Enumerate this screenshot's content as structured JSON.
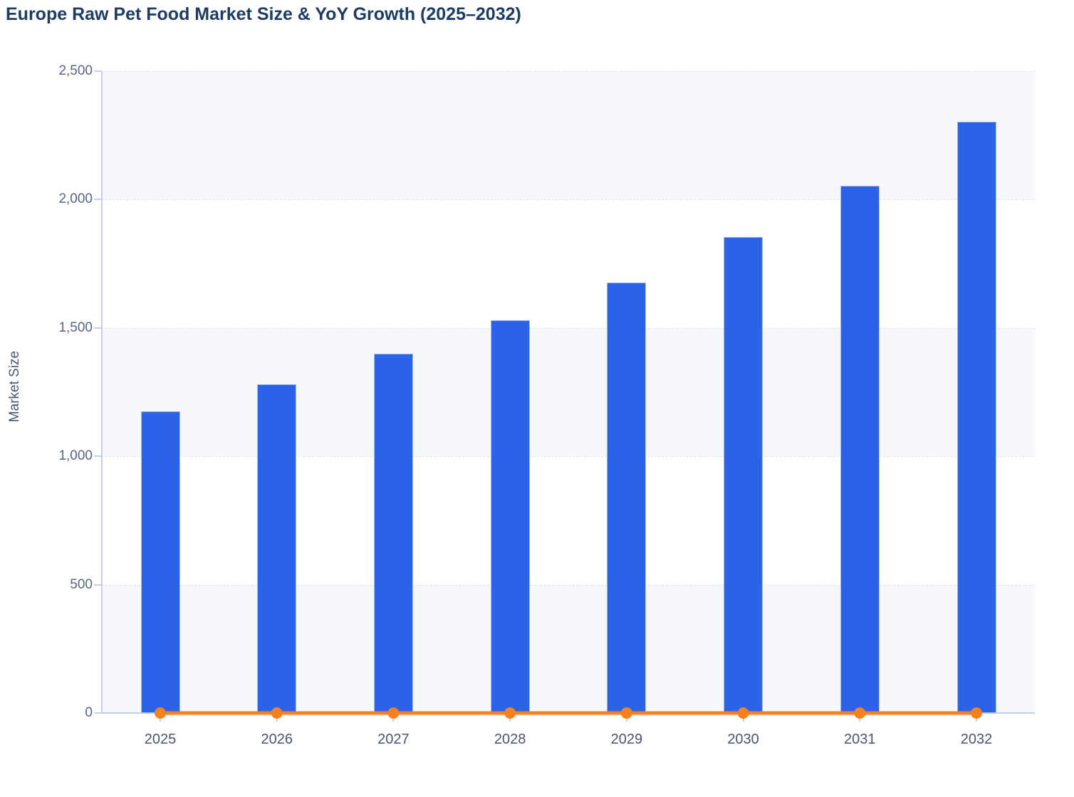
{
  "chart_data": {
    "type": "bar",
    "title": "Europe Raw Pet Food Market Size & YoY Growth (2025–2032)",
    "xlabel": "",
    "ylabel": "Market Size",
    "categories": [
      "2025",
      "2026",
      "2027",
      "2028",
      "2029",
      "2030",
      "2031",
      "2032"
    ],
    "series": [
      {
        "name": "Market Size",
        "type": "bar",
        "values": [
          1175,
          1280,
          1400,
          1530,
          1678,
          1853,
          2055,
          2304
        ],
        "color": "#2a63e8",
        "border_color": "#a9bdf1"
      },
      {
        "name": "YoY Growth",
        "type": "line",
        "values": [
          0,
          0,
          0,
          0,
          0,
          0,
          0,
          0
        ],
        "color": "#f5811e",
        "note": "renders flat along the zero baseline of the left axis with a round marker at each year"
      }
    ],
    "ylim": [
      0,
      2500
    ],
    "yticks": [
      0,
      500,
      1000,
      1500,
      2000,
      2500
    ],
    "ytick_labels": [
      "0",
      "500",
      "1,000",
      "1,500",
      "2,000",
      "2,500"
    ],
    "grid": "horizontal dashed gridlines, alternating plot bands",
    "legend": "none",
    "band_color": "#f7f8fb",
    "gridline_color": "#dfe2e8",
    "axis_color": "#c7cfea",
    "title_color": "#1d3c63"
  }
}
